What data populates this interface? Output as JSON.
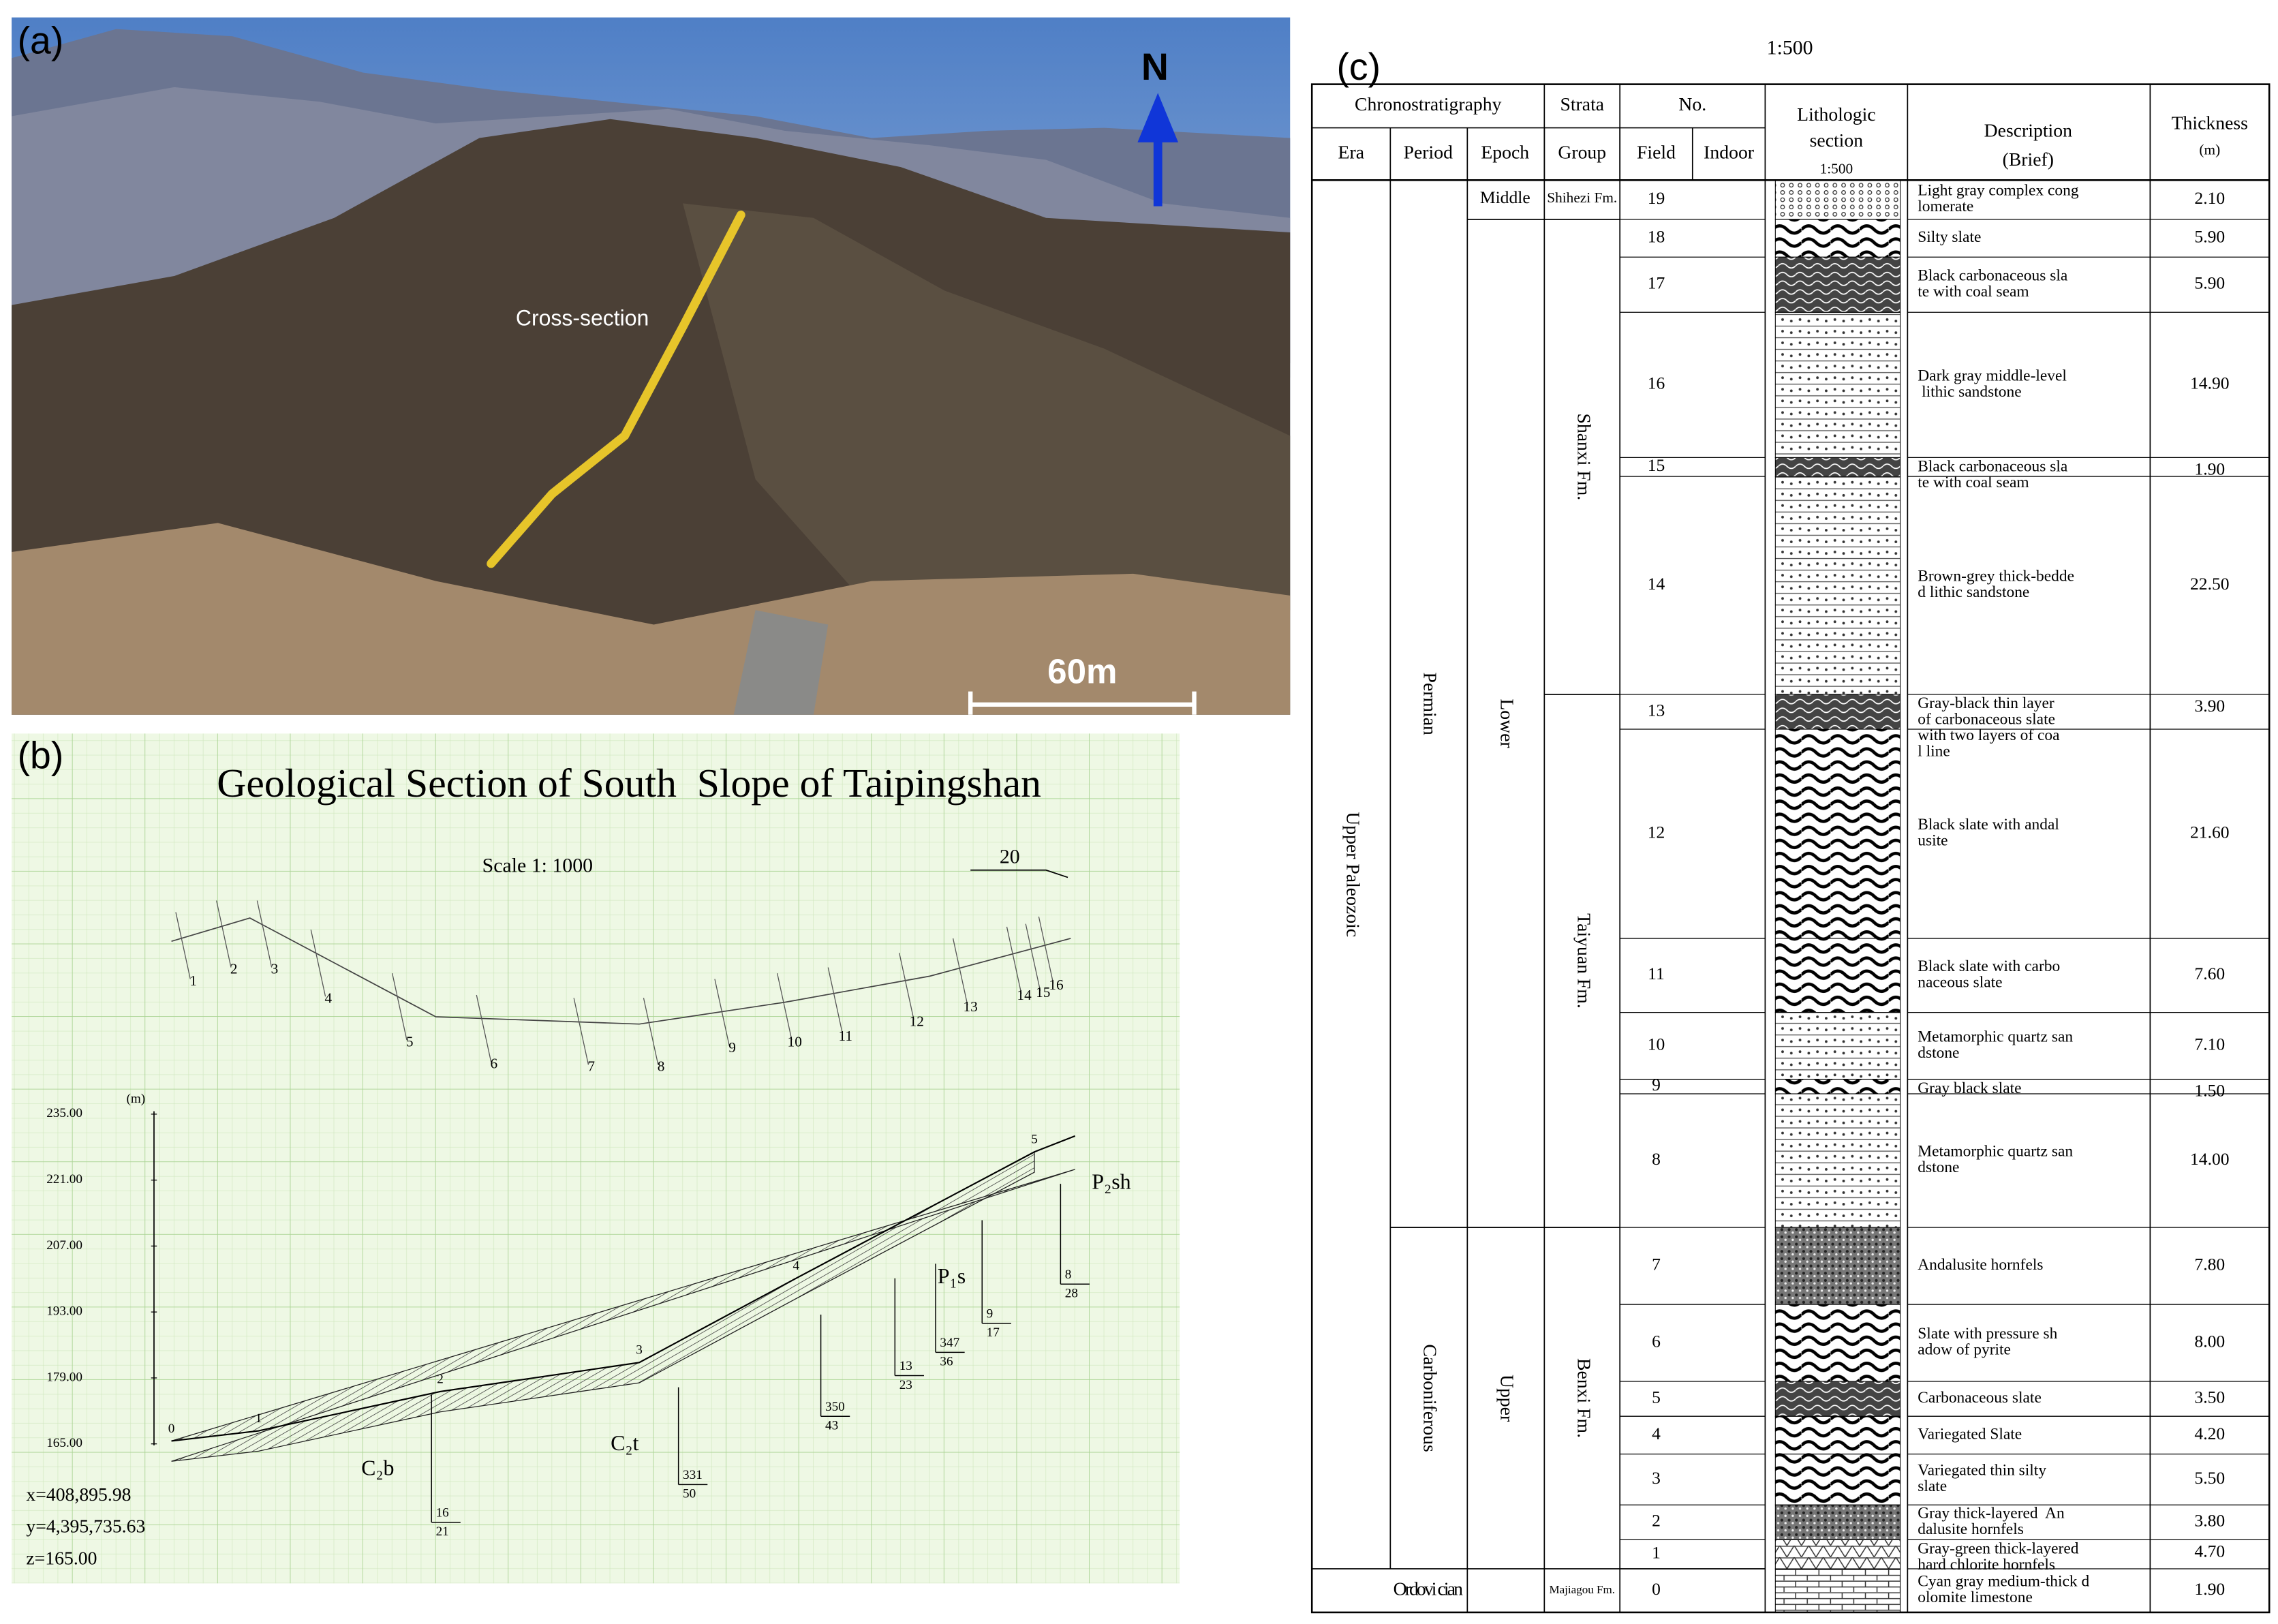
{
  "panel_a": {
    "label": "(a)",
    "north": "N",
    "annotation": "Cross-section",
    "scale_bar": "60m"
  },
  "panel_b": {
    "label": "(b)",
    "title": "Geological Section of South  Slope of Taipingshan",
    "scale": "Scale 1: 1000",
    "scale_bar": "20",
    "unit": "(m)",
    "elevations": [
      "235.00",
      "221.00",
      "207.00",
      "193.00",
      "179.00",
      "165.00"
    ],
    "plan_labels": [
      "1",
      "2",
      "3",
      "4",
      "5",
      "6",
      "7",
      "8",
      "9",
      "10",
      "11",
      "12",
      "13",
      "14",
      "15",
      "16"
    ],
    "stations": [
      "0",
      "1",
      "2",
      "3",
      "4",
      "5"
    ],
    "formations": [
      "C₂b",
      "C₂t",
      "P₁s",
      "P₂sh"
    ],
    "attitudes": [
      [
        "16",
        "21"
      ],
      [
        "331",
        "50"
      ],
      [
        "350",
        "43"
      ],
      [
        "13",
        "23"
      ],
      [
        "347",
        "36"
      ],
      [
        "9",
        "17"
      ],
      [
        "8",
        "28"
      ]
    ],
    "coordinates": [
      "x=408,895.98",
      "y=4,395,735.63",
      "z=165.00"
    ]
  },
  "panel_c": {
    "label": "(c)",
    "scale": "1:500",
    "headers": {
      "chronostratigraphy": "Chronostratigraphy",
      "strata": "Strata",
      "no": "No.",
      "era": "Era",
      "period": "Period",
      "epoch": "Epoch",
      "group": "Group",
      "field": "Field",
      "indoor": "Indoor",
      "lithologic": [
        "Lithologic",
        "section",
        "1:500"
      ],
      "description": [
        "Description",
        "(Brief)"
      ],
      "thickness": [
        "Thickness",
        "(m)"
      ]
    },
    "eras": [
      "Upper Paleozoic",
      "Ordovi cian"
    ],
    "periods": [
      "Permian",
      "Carboniferous"
    ],
    "epochs": [
      "Middle",
      "Lower",
      "Upper"
    ],
    "groups": [
      "Shihezi Fm.",
      "Shanxi Fm.",
      "Taiyuan Fm.",
      "Benxi Fm.",
      "Majiagou Fm."
    ],
    "rows": [
      {
        "field": "19",
        "description": [
          "Light gray complex cong",
          "lomerate"
        ],
        "thickness": "2.10"
      },
      {
        "field": "18",
        "description": [
          "Silty slate"
        ],
        "thickness": "5.90"
      },
      {
        "field": "17",
        "description": [
          "Black carbonaceous sla",
          "te with coal seam"
        ],
        "thickness": "5.90"
      },
      {
        "field": "16",
        "description": [
          "Dark gray middle-level",
          " lithic sandstone"
        ],
        "thickness": "14.90"
      },
      {
        "field": "15",
        "description": [
          "Black carbonaceous sla",
          "te with coal seam"
        ],
        "thickness": "1.90"
      },
      {
        "field": "14",
        "description": [
          "Brown-grey thick-bedde",
          "d lithic sandstone"
        ],
        "thickness": "22.50"
      },
      {
        "field": "13",
        "description": [
          "Gray-black thin layer",
          "of carbonaceous slate",
          "with two layers of coa",
          "l line"
        ],
        "thickness": "3.90"
      },
      {
        "field": "12",
        "description": [
          "Black slate with andal",
          "usite"
        ],
        "thickness": "21.60"
      },
      {
        "field": "11",
        "description": [
          "Black slate with carbo",
          "naceous slate"
        ],
        "thickness": "7.60"
      },
      {
        "field": "10",
        "description": [
          "Metamorphic quartz san",
          "dstone"
        ],
        "thickness": "7.10"
      },
      {
        "field": "9",
        "description": [
          "Gray black slate"
        ],
        "thickness": "1.50"
      },
      {
        "field": "8",
        "description": [
          "Metamorphic quartz san",
          "dstone"
        ],
        "thickness": "14.00"
      },
      {
        "field": "7",
        "description": [
          "Andalusite hornfels"
        ],
        "thickness": "7.80"
      },
      {
        "field": "6",
        "description": [
          "Slate with pressure sh",
          "adow of pyrite"
        ],
        "thickness": "8.00"
      },
      {
        "field": "5",
        "description": [
          "Carbonaceous slate"
        ],
        "thickness": "3.50"
      },
      {
        "field": "4",
        "description": [
          "Variegated Slate"
        ],
        "thickness": "4.20"
      },
      {
        "field": "3",
        "description": [
          "Variegated thin silty",
          "slate"
        ],
        "thickness": "5.50"
      },
      {
        "field": "2",
        "description": [
          "Gray thick-layered  An",
          "dalusite hornfels"
        ],
        "thickness": "3.80"
      },
      {
        "field": "1",
        "description": [
          "Gray-green thick-layered",
          "hard chlorite hornfels"
        ],
        "thickness": "4.70"
      },
      {
        "field": "0",
        "description": [
          "Cyan gray medium-thick d",
          "olomite limestone"
        ],
        "thickness": "1.90"
      }
    ]
  }
}
